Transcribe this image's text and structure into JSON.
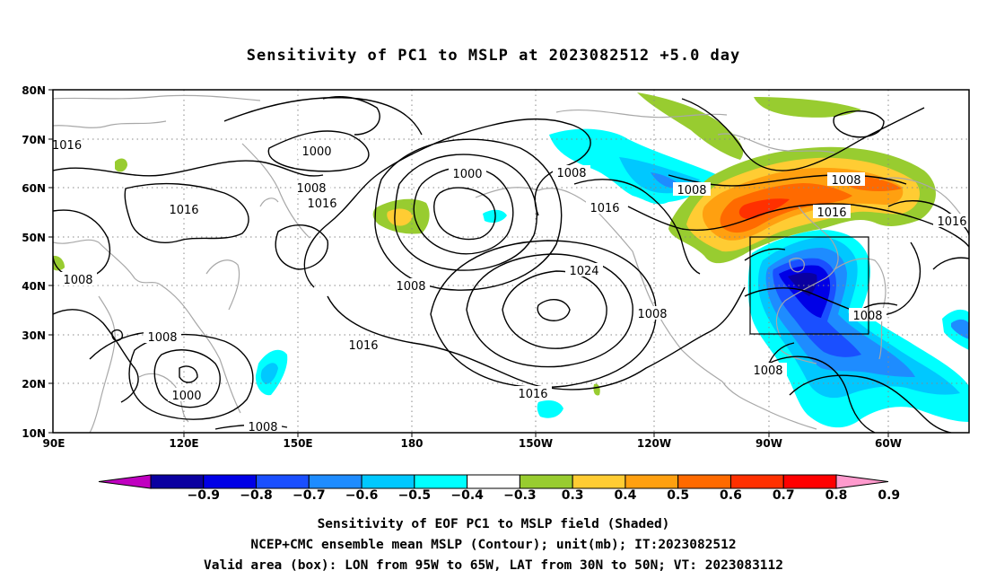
{
  "title": "Sensitivity of PC1 to MSLP at 2023082512 +5.0 day",
  "lat_labels": [
    "80N",
    "70N",
    "60N",
    "50N",
    "40N",
    "30N",
    "20N",
    "10N"
  ],
  "lon_labels": [
    "90E",
    "120E",
    "150E",
    "180",
    "150W",
    "120W",
    "90W",
    "60W"
  ],
  "colorbar": {
    "labels": [
      "−0.9",
      "−0.8",
      "−0.7",
      "−0.6",
      "−0.5",
      "−0.4",
      "−0.3",
      "0.3",
      "0.4",
      "0.5",
      "0.6",
      "0.7",
      "0.8",
      "0.9"
    ],
    "colors": [
      "#c000c0",
      "#0a00a0",
      "#0000e6",
      "#1a4fff",
      "#1e8cff",
      "#00c8ff",
      "#00ffff",
      "#ffffff",
      "#98cc30",
      "#ffcc33",
      "#ffa010",
      "#ff6a00",
      "#ff3000",
      "#ff0000",
      "#ff9acd"
    ]
  },
  "contour_labels": [
    "1000",
    "1000",
    "1000",
    "1008",
    "1008",
    "1008",
    "1008",
    "1008",
    "1008",
    "1008",
    "1008",
    "1008",
    "1008",
    "1016",
    "1016",
    "1016",
    "1016",
    "1016",
    "1016",
    "1016",
    "1024"
  ],
  "caption": {
    "line1": "Sensitivity of EOF PC1 to MSLP field (Shaded)",
    "line2": "NCEP+CMC ensemble mean MSLP (Contour); unit(mb); IT:2023082512",
    "line3": "Valid area (box): LON from 95W to 65W, LAT from 30N to 50N; VT: 2023083112"
  },
  "valid_area": {
    "lon_min": "95W",
    "lon_max": "65W",
    "lat_min": "30N",
    "lat_max": "50N"
  }
}
